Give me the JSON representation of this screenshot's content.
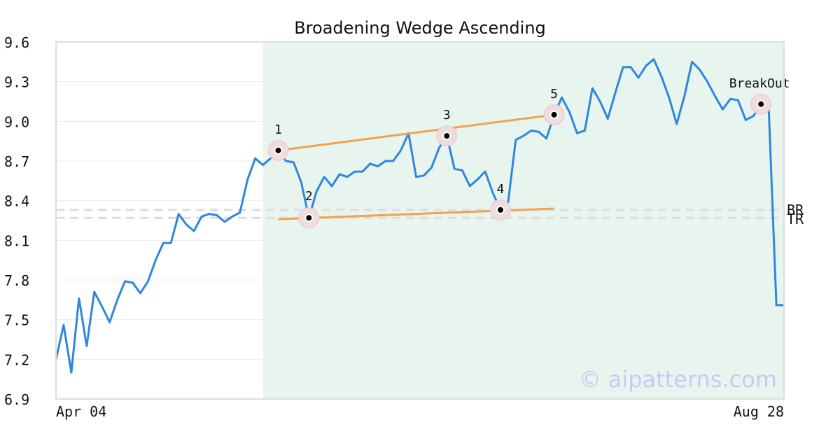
{
  "chart_data": {
    "type": "line",
    "title": "Broadening Wedge Ascending",
    "xlabel": "",
    "ylabel": "",
    "x_tick_labels": [
      "Apr 04",
      "Aug 28"
    ],
    "ylim": [
      6.9,
      9.6
    ],
    "y_ticks": [
      "6.9",
      "7.2",
      "7.5",
      "7.8",
      "8.1",
      "8.4",
      "8.7",
      "9.0",
      "9.3",
      "9.6"
    ],
    "grid": true,
    "series": [
      {
        "color": "#2f86e0",
        "values": [
          7.2,
          7.46,
          7.1,
          7.66,
          7.3,
          7.71,
          7.6,
          7.48,
          7.65,
          7.79,
          7.78,
          7.7,
          7.79,
          7.95,
          8.08,
          8.08,
          8.3,
          8.22,
          8.17,
          8.28,
          8.3,
          8.29,
          8.24,
          8.28,
          8.31,
          8.56,
          8.72,
          8.67,
          8.72,
          8.78,
          8.7,
          8.69,
          8.54,
          8.27,
          8.47,
          8.58,
          8.51,
          8.6,
          8.58,
          8.62,
          8.62,
          8.68,
          8.66,
          8.7,
          8.7,
          8.78,
          8.91,
          8.58,
          8.59,
          8.65,
          8.8,
          8.89,
          8.64,
          8.63,
          8.51,
          8.56,
          8.62,
          8.46,
          8.33,
          8.39,
          8.86,
          8.89,
          8.93,
          8.92,
          8.87,
          9.05,
          9.18,
          9.07,
          8.91,
          8.93,
          9.25,
          9.15,
          9.02,
          9.22,
          9.41,
          9.41,
          9.33,
          9.42,
          9.47,
          9.34,
          9.18,
          8.98,
          9.19,
          9.45,
          9.39,
          9.3,
          9.19,
          9.09,
          9.17,
          9.16,
          9.01,
          9.04,
          9.13,
          9.11,
          7.61,
          7.61
        ]
      }
    ],
    "pattern_region": {
      "start_index": 27,
      "end_index": 95,
      "color": "#e8f5ef"
    },
    "levels": [
      {
        "label": "BR",
        "value": 8.33
      },
      {
        "label": "TR",
        "value": 8.27
      }
    ],
    "trendlines": [
      {
        "from": {
          "index": 29,
          "value": 8.78
        },
        "to": {
          "index": 65,
          "value": 9.05
        },
        "color": "#f5a04a"
      },
      {
        "from": {
          "index": 29,
          "value": 8.26
        },
        "to": {
          "index": 65,
          "value": 8.34
        },
        "color": "#f5a04a"
      }
    ],
    "points": [
      {
        "label": "1",
        "index": 29,
        "value": 8.78
      },
      {
        "label": "2",
        "index": 33,
        "value": 8.27
      },
      {
        "label": "3",
        "index": 51,
        "value": 8.89
      },
      {
        "label": "4",
        "index": 58,
        "value": 8.33
      },
      {
        "label": "5",
        "index": 65,
        "value": 9.05
      },
      {
        "label": "BreakOut",
        "index": 92,
        "value": 9.13
      }
    ],
    "watermark": "© aipatterns.com"
  }
}
